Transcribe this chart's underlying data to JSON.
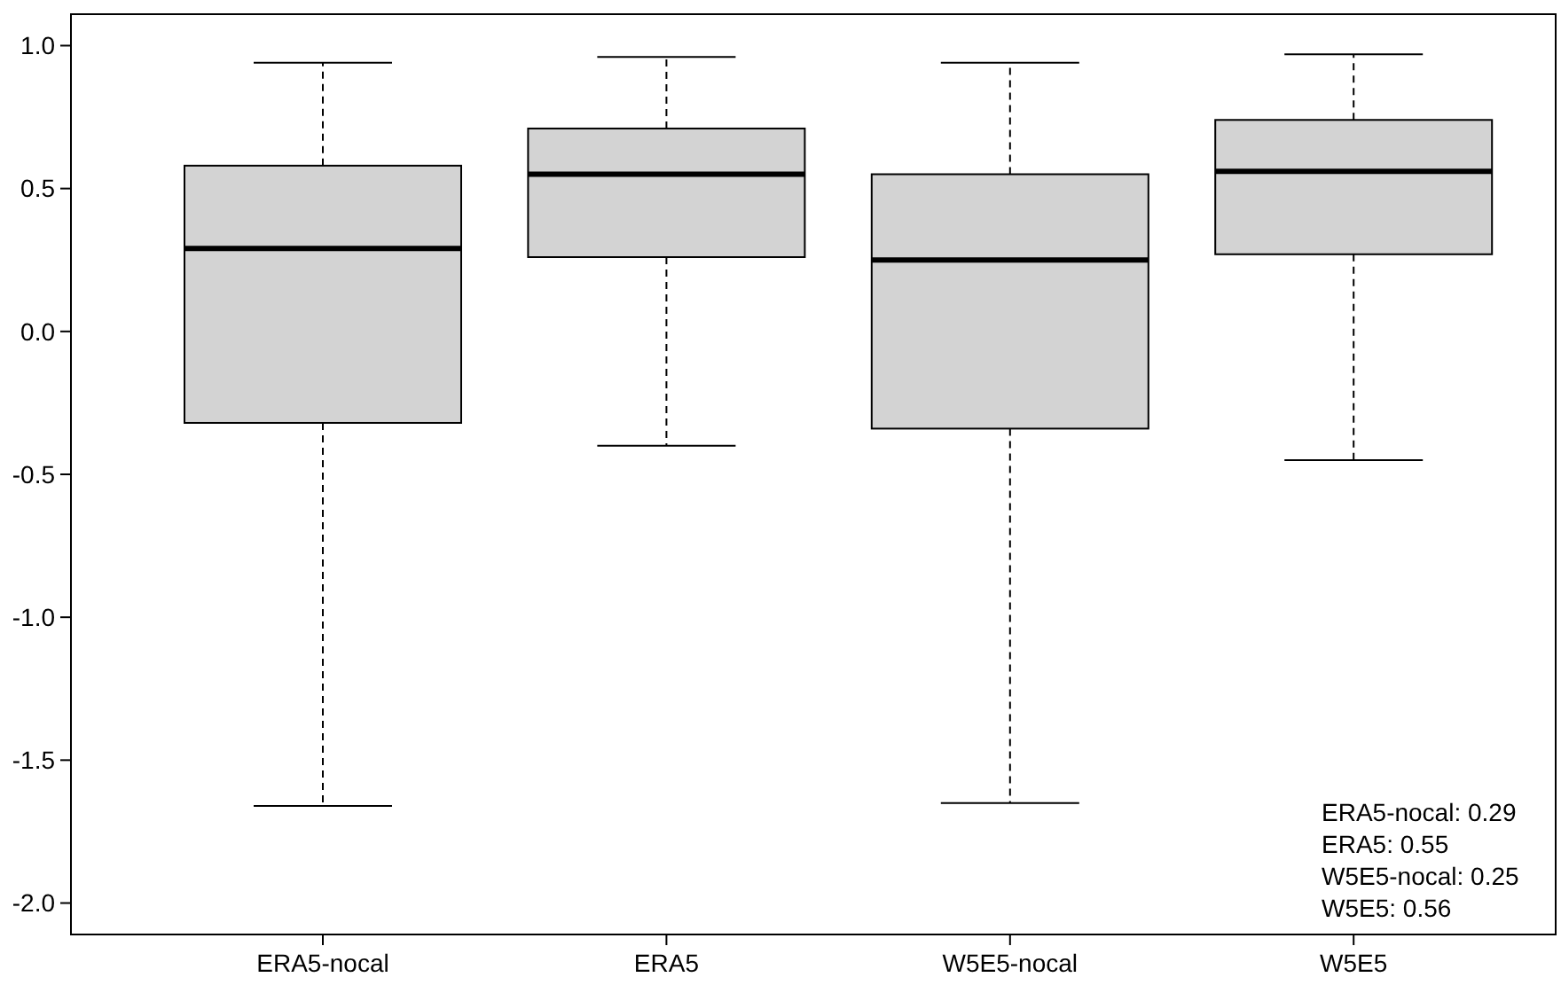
{
  "chart_data": {
    "type": "box",
    "categories": [
      "ERA5-nocal",
      "ERA5",
      "W5E5-nocal",
      "W5E5"
    ],
    "boxes": [
      {
        "low": -1.66,
        "q1": -0.32,
        "median": 0.29,
        "q3": 0.58,
        "high": 0.94
      },
      {
        "low": -0.4,
        "q1": 0.26,
        "median": 0.55,
        "q3": 0.71,
        "high": 0.96
      },
      {
        "low": -1.65,
        "q1": -0.34,
        "median": 0.25,
        "q3": 0.55,
        "high": 0.94
      },
      {
        "low": -0.45,
        "q1": 0.27,
        "median": 0.56,
        "q3": 0.74,
        "high": 0.97
      }
    ],
    "color": "#d3d3d3",
    "ylim": [
      -2.11,
      1.11
    ],
    "yticks": [
      {
        "value": -2,
        "label": "-2.0"
      },
      {
        "value": -1.5,
        "label": "-1.5"
      },
      {
        "value": -1,
        "label": "-1.0"
      },
      {
        "value": -0.5,
        "label": "-0.5"
      },
      {
        "value": 0,
        "label": "0.0"
      },
      {
        "value": 0.5,
        "label": "0.5"
      },
      {
        "value": 1,
        "label": "1.0"
      }
    ],
    "grid": false,
    "annotations": [
      "ERA5-nocal: 0.29",
      "ERA5: 0.55",
      "W5E5-nocal: 0.25",
      "W5E5: 0.56"
    ]
  }
}
